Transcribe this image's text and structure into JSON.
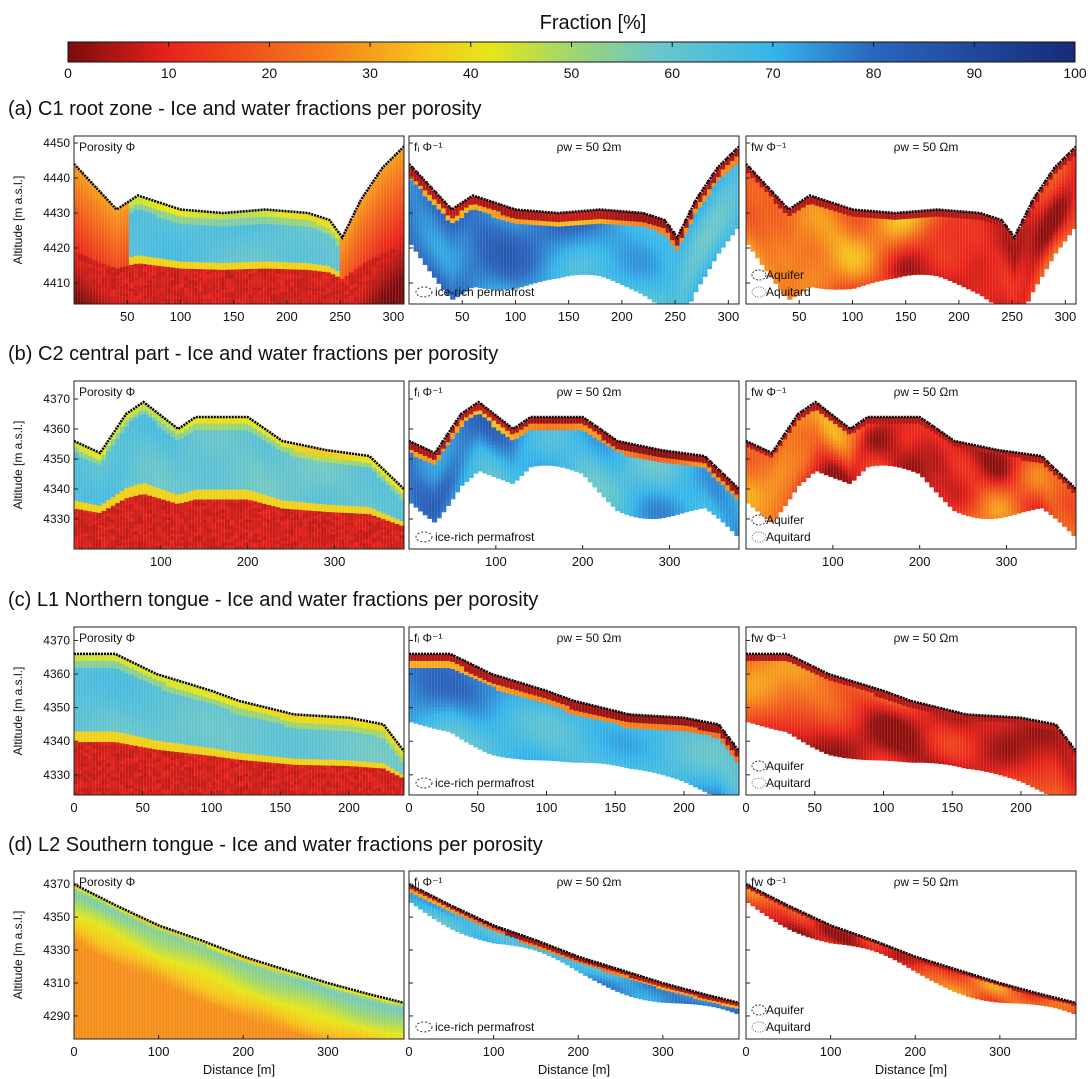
{
  "colorbar": {
    "title": "Fraction [%]",
    "ticks": [
      0,
      10,
      20,
      30,
      40,
      50,
      60,
      70,
      80,
      90,
      100
    ],
    "range": [
      0,
      100
    ],
    "colormap_stops": [
      {
        "v": 0,
        "color": "#7a0c0c"
      },
      {
        "v": 10,
        "color": "#e8221b"
      },
      {
        "v": 25,
        "color": "#f57b1c"
      },
      {
        "v": 35,
        "color": "#f6c21c"
      },
      {
        "v": 42,
        "color": "#e6e619"
      },
      {
        "v": 50,
        "color": "#9fd66e"
      },
      {
        "v": 58,
        "color": "#6ec7c8"
      },
      {
        "v": 70,
        "color": "#35b5ea"
      },
      {
        "v": 80,
        "color": "#2a66bf"
      },
      {
        "v": 100,
        "color": "#172a78"
      }
    ]
  },
  "chart_data": [
    {
      "type": "heatmap",
      "title": "(a) C1 root zone - Ice and water fractions per porosity",
      "ylabel": "Altitude [m a.s.l.]",
      "xlabel": "",
      "xlim": [
        0,
        310
      ],
      "ylim": [
        4404,
        4452
      ],
      "xticks": [
        50,
        100,
        150,
        200,
        250,
        300
      ],
      "yticks": [
        4410,
        4420,
        4430,
        4440,
        4450
      ],
      "surface_profile": [
        [
          0,
          4444
        ],
        [
          40,
          4431
        ],
        [
          60,
          4435
        ],
        [
          100,
          4431
        ],
        [
          140,
          4430
        ],
        [
          180,
          4431
        ],
        [
          220,
          4430
        ],
        [
          240,
          4428
        ],
        [
          252,
          4423
        ],
        [
          270,
          4434
        ],
        [
          290,
          4443
        ],
        [
          310,
          4449
        ]
      ],
      "panels": [
        {
          "label": "Porosity Φ",
          "rho_label": "",
          "legend": []
        },
        {
          "label": "fᵢ Φ⁻¹",
          "rho_label": "ρw = 50 Ωm",
          "legend": [
            "ice-rich permafrost"
          ]
        },
        {
          "label": "fw Φ⁻¹",
          "rho_label": "ρw = 50 Ωm",
          "legend": [
            "Aquifer",
            "Aquitard"
          ]
        }
      ]
    },
    {
      "type": "heatmap",
      "title": "(b) C2 central part - Ice and water fractions per porosity",
      "ylabel": "Altitude [m a.s.l.]",
      "xlabel": "",
      "xlim": [
        0,
        380
      ],
      "ylim": [
        4320,
        4376
      ],
      "xticks": [
        100,
        200,
        300
      ],
      "yticks": [
        4330,
        4340,
        4350,
        4360,
        4370
      ],
      "surface_profile": [
        [
          0,
          4356
        ],
        [
          30,
          4352
        ],
        [
          60,
          4365
        ],
        [
          80,
          4369
        ],
        [
          120,
          4360
        ],
        [
          140,
          4364
        ],
        [
          200,
          4364
        ],
        [
          240,
          4356
        ],
        [
          290,
          4353
        ],
        [
          340,
          4351
        ],
        [
          380,
          4340
        ]
      ],
      "panels": [
        {
          "label": "Porosity Φ",
          "rho_label": "",
          "legend": []
        },
        {
          "label": "fᵢ Φ⁻¹",
          "rho_label": "ρw = 50 Ωm",
          "legend": [
            "ice-rich permafrost"
          ]
        },
        {
          "label": "fw Φ⁻¹",
          "rho_label": "ρw = 50 Ωm",
          "legend": [
            "Aquifer",
            "Aquitard"
          ]
        }
      ]
    },
    {
      "type": "heatmap",
      "title": "(c) L1 Northern tongue - Ice and water fractions per porosity",
      "ylabel": "Altitude [m a.s.l.]",
      "xlabel": "",
      "xlim": [
        0,
        240
      ],
      "ylim": [
        4324,
        4374
      ],
      "xticks": [
        0,
        50,
        100,
        150,
        200
      ],
      "yticks": [
        4330,
        4340,
        4350,
        4360,
        4370
      ],
      "surface_profile": [
        [
          0,
          4366
        ],
        [
          30,
          4366
        ],
        [
          60,
          4360
        ],
        [
          100,
          4355
        ],
        [
          120,
          4352
        ],
        [
          140,
          4350
        ],
        [
          160,
          4348
        ],
        [
          200,
          4347
        ],
        [
          225,
          4345
        ],
        [
          240,
          4337
        ]
      ],
      "panels": [
        {
          "label": "Porosity Φ",
          "rho_label": "",
          "legend": []
        },
        {
          "label": "fᵢ Φ⁻¹",
          "rho_label": "ρw = 50 Ωm",
          "legend": [
            "ice-rich permafrost"
          ]
        },
        {
          "label": "fw Φ⁻¹",
          "rho_label": "ρw = 50 Ωm",
          "legend": [
            "Aquifer",
            "Aquitard"
          ]
        }
      ]
    },
    {
      "type": "heatmap",
      "title": "(d) L2 Southern tongue - Ice and water fractions per porosity",
      "ylabel": "Altitude [m a.s.l.]",
      "xlabel": "Distance [m]",
      "xlim": [
        0,
        390
      ],
      "ylim": [
        4276,
        4378
      ],
      "xticks": [
        0,
        100,
        200,
        300
      ],
      "yticks": [
        4290,
        4310,
        4330,
        4350,
        4370
      ],
      "surface_profile": [
        [
          0,
          4370
        ],
        [
          50,
          4357
        ],
        [
          100,
          4345
        ],
        [
          150,
          4336
        ],
        [
          200,
          4326
        ],
        [
          250,
          4318
        ],
        [
          300,
          4310
        ],
        [
          350,
          4303
        ],
        [
          390,
          4298
        ]
      ],
      "panels": [
        {
          "label": "Porosity Φ",
          "rho_label": "",
          "legend": []
        },
        {
          "label": "fᵢ Φ⁻¹",
          "rho_label": "ρw = 50 Ωm",
          "legend": [
            "ice-rich permafrost"
          ]
        },
        {
          "label": "fw Φ⁻¹",
          "rho_label": "ρw = 50 Ωm",
          "legend": [
            "Aquifer",
            "Aquitard"
          ]
        }
      ]
    }
  ]
}
